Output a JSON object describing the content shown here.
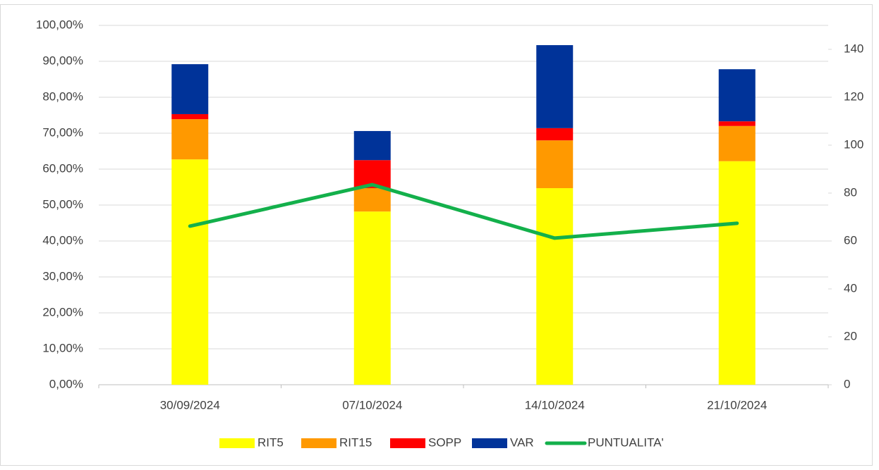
{
  "chart_data": {
    "type": "stacked_bar_line",
    "categories": [
      "30/09/2024",
      "07/10/2024",
      "14/10/2024",
      "21/10/2024"
    ],
    "series": [
      {
        "name": "RIT5",
        "color": "#ffff00",
        "values": [
          62.7,
          48.2,
          54.7,
          62.2
        ]
      },
      {
        "name": "RIT15",
        "color": "#ff9900",
        "values": [
          11.2,
          6.5,
          13.3,
          9.8
        ]
      },
      {
        "name": "SOPP",
        "color": "#ff0000",
        "values": [
          1.4,
          7.8,
          3.4,
          1.3
        ]
      },
      {
        "name": "VAR",
        "color": "#003399",
        "values": [
          13.9,
          8.1,
          23.1,
          14.5
        ]
      },
      {
        "name": "PUNTUALITA'",
        "color": "#13b04b",
        "values": [
          66.2,
          83.5,
          61.2,
          67.4
        ],
        "axis": "y2",
        "type": "line"
      }
    ],
    "ylim": [
      0,
      100
    ],
    "yticks": [
      {
        "value": 0,
        "label": "0,00%"
      },
      {
        "value": 10,
        "label": "10,00%"
      },
      {
        "value": 20,
        "label": "20,00%"
      },
      {
        "value": 30,
        "label": "30,00%"
      },
      {
        "value": 40,
        "label": "40,00%"
      },
      {
        "value": 50,
        "label": "50,00%"
      },
      {
        "value": 60,
        "label": "60,00%"
      },
      {
        "value": 70,
        "label": "70,00%"
      },
      {
        "value": 80,
        "label": "80,00%"
      },
      {
        "value": 90,
        "label": "90,00%"
      },
      {
        "value": 100,
        "label": "100,00%"
      }
    ],
    "y2lim": [
      0,
      150
    ],
    "y2ticks": [
      0,
      20,
      40,
      60,
      80,
      100,
      120,
      140
    ],
    "grid": true,
    "legend": "bottom"
  }
}
